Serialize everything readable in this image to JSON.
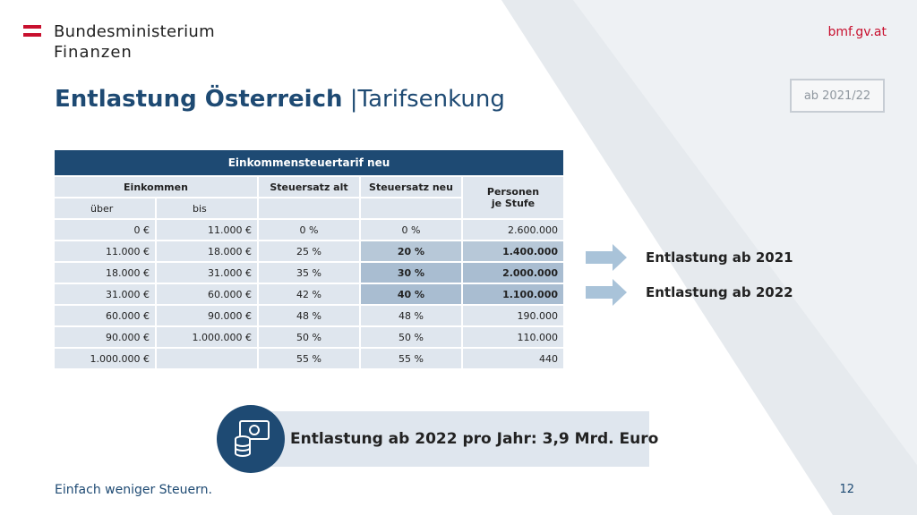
{
  "header": {
    "logo_line1": "Bundesministerium",
    "logo_line2": "Finanzen",
    "site": "bmf.gv.at"
  },
  "title": {
    "main": "Entlastung Österreich",
    "separator": "|",
    "sub": "Tarifsenkung"
  },
  "badge": "ab 2021/22",
  "table": {
    "caption": "Einkommensteuertarif neu",
    "col_einkommen": "Einkommen",
    "col_alt": "Steuersatz alt",
    "col_neu": "Steuersatz neu",
    "col_personen_line1": "Personen",
    "col_personen_line2": "je Stufe",
    "sub_ueber": "über",
    "sub_bis": "bis",
    "rows": [
      {
        "ueber": "0 €",
        "bis": "11.000 €",
        "alt": "0 %",
        "neu": "0 %",
        "personen": "2.600.000"
      },
      {
        "ueber": "11.000 €",
        "bis": "18.000 €",
        "alt": "25 %",
        "neu": "20 %",
        "personen": "1.400.000"
      },
      {
        "ueber": "18.000 €",
        "bis": "31.000 €",
        "alt": "35 %",
        "neu": "30 %",
        "personen": "2.000.000"
      },
      {
        "ueber": "31.000 €",
        "bis": "60.000 €",
        "alt": "42 %",
        "neu": "40 %",
        "personen": "1.100.000"
      },
      {
        "ueber": "60.000 €",
        "bis": "90.000 €",
        "alt": "48 %",
        "neu": "48 %",
        "personen": "190.000"
      },
      {
        "ueber": "90.000 €",
        "bis": "1.000.000 €",
        "alt": "50 %",
        "neu": "50 %",
        "personen": "110.000"
      },
      {
        "ueber": "1.000.000 €",
        "bis": "",
        "alt": "55 %",
        "neu": "55 %",
        "personen": "440"
      }
    ]
  },
  "entlastung_2021": "Entlastung ab 2021",
  "entlastung_2022": "Entlastung ab 2022",
  "banner": "Entlastung ab 2022 pro Jahr: 3,9 Mrd. Euro",
  "footer": "Einfach weniger Steuern.",
  "page_number": "12",
  "colors": {
    "primary": "#1e4a73",
    "accent_red": "#c8102e",
    "cell": "#dfe6ee",
    "highlight": "#b7c8d8"
  },
  "icons": [
    "austrian-flag-icon",
    "arrow-right-icon",
    "money-coins-icon"
  ]
}
